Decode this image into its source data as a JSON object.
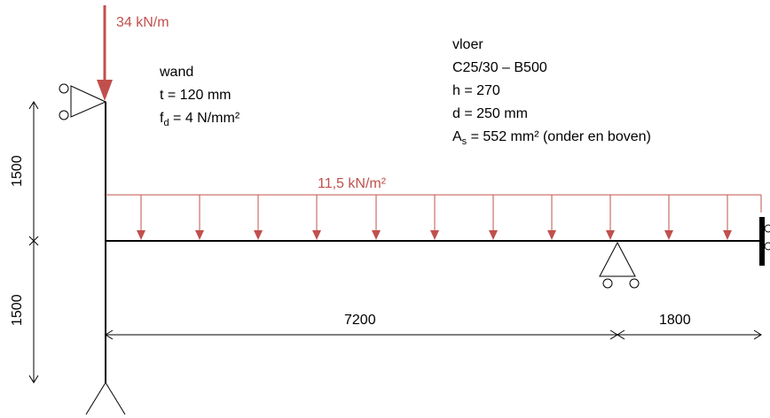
{
  "colors": {
    "load": "#c0504d",
    "line": "#000000"
  },
  "loads": {
    "point_load_label": "34 kN/m",
    "distributed_load_label": "11,5 kN/m²"
  },
  "wall": {
    "title": "wand",
    "thickness": "t = 120 mm",
    "fd_main": "f",
    "fd_sub": "d",
    "fd_rest": " = 4 N/mm²"
  },
  "floor": {
    "title": "vloer",
    "grade": "C25/30 – B500",
    "h": "h = 270",
    "d": "d = 250 mm",
    "as_main": "A",
    "as_sub": "s",
    "as_rest": " = 552 mm² (onder en boven)"
  },
  "dimensions": {
    "upper_height": "1500",
    "lower_height": "1500",
    "span_main": "7200",
    "span_cantilever": "1800"
  }
}
